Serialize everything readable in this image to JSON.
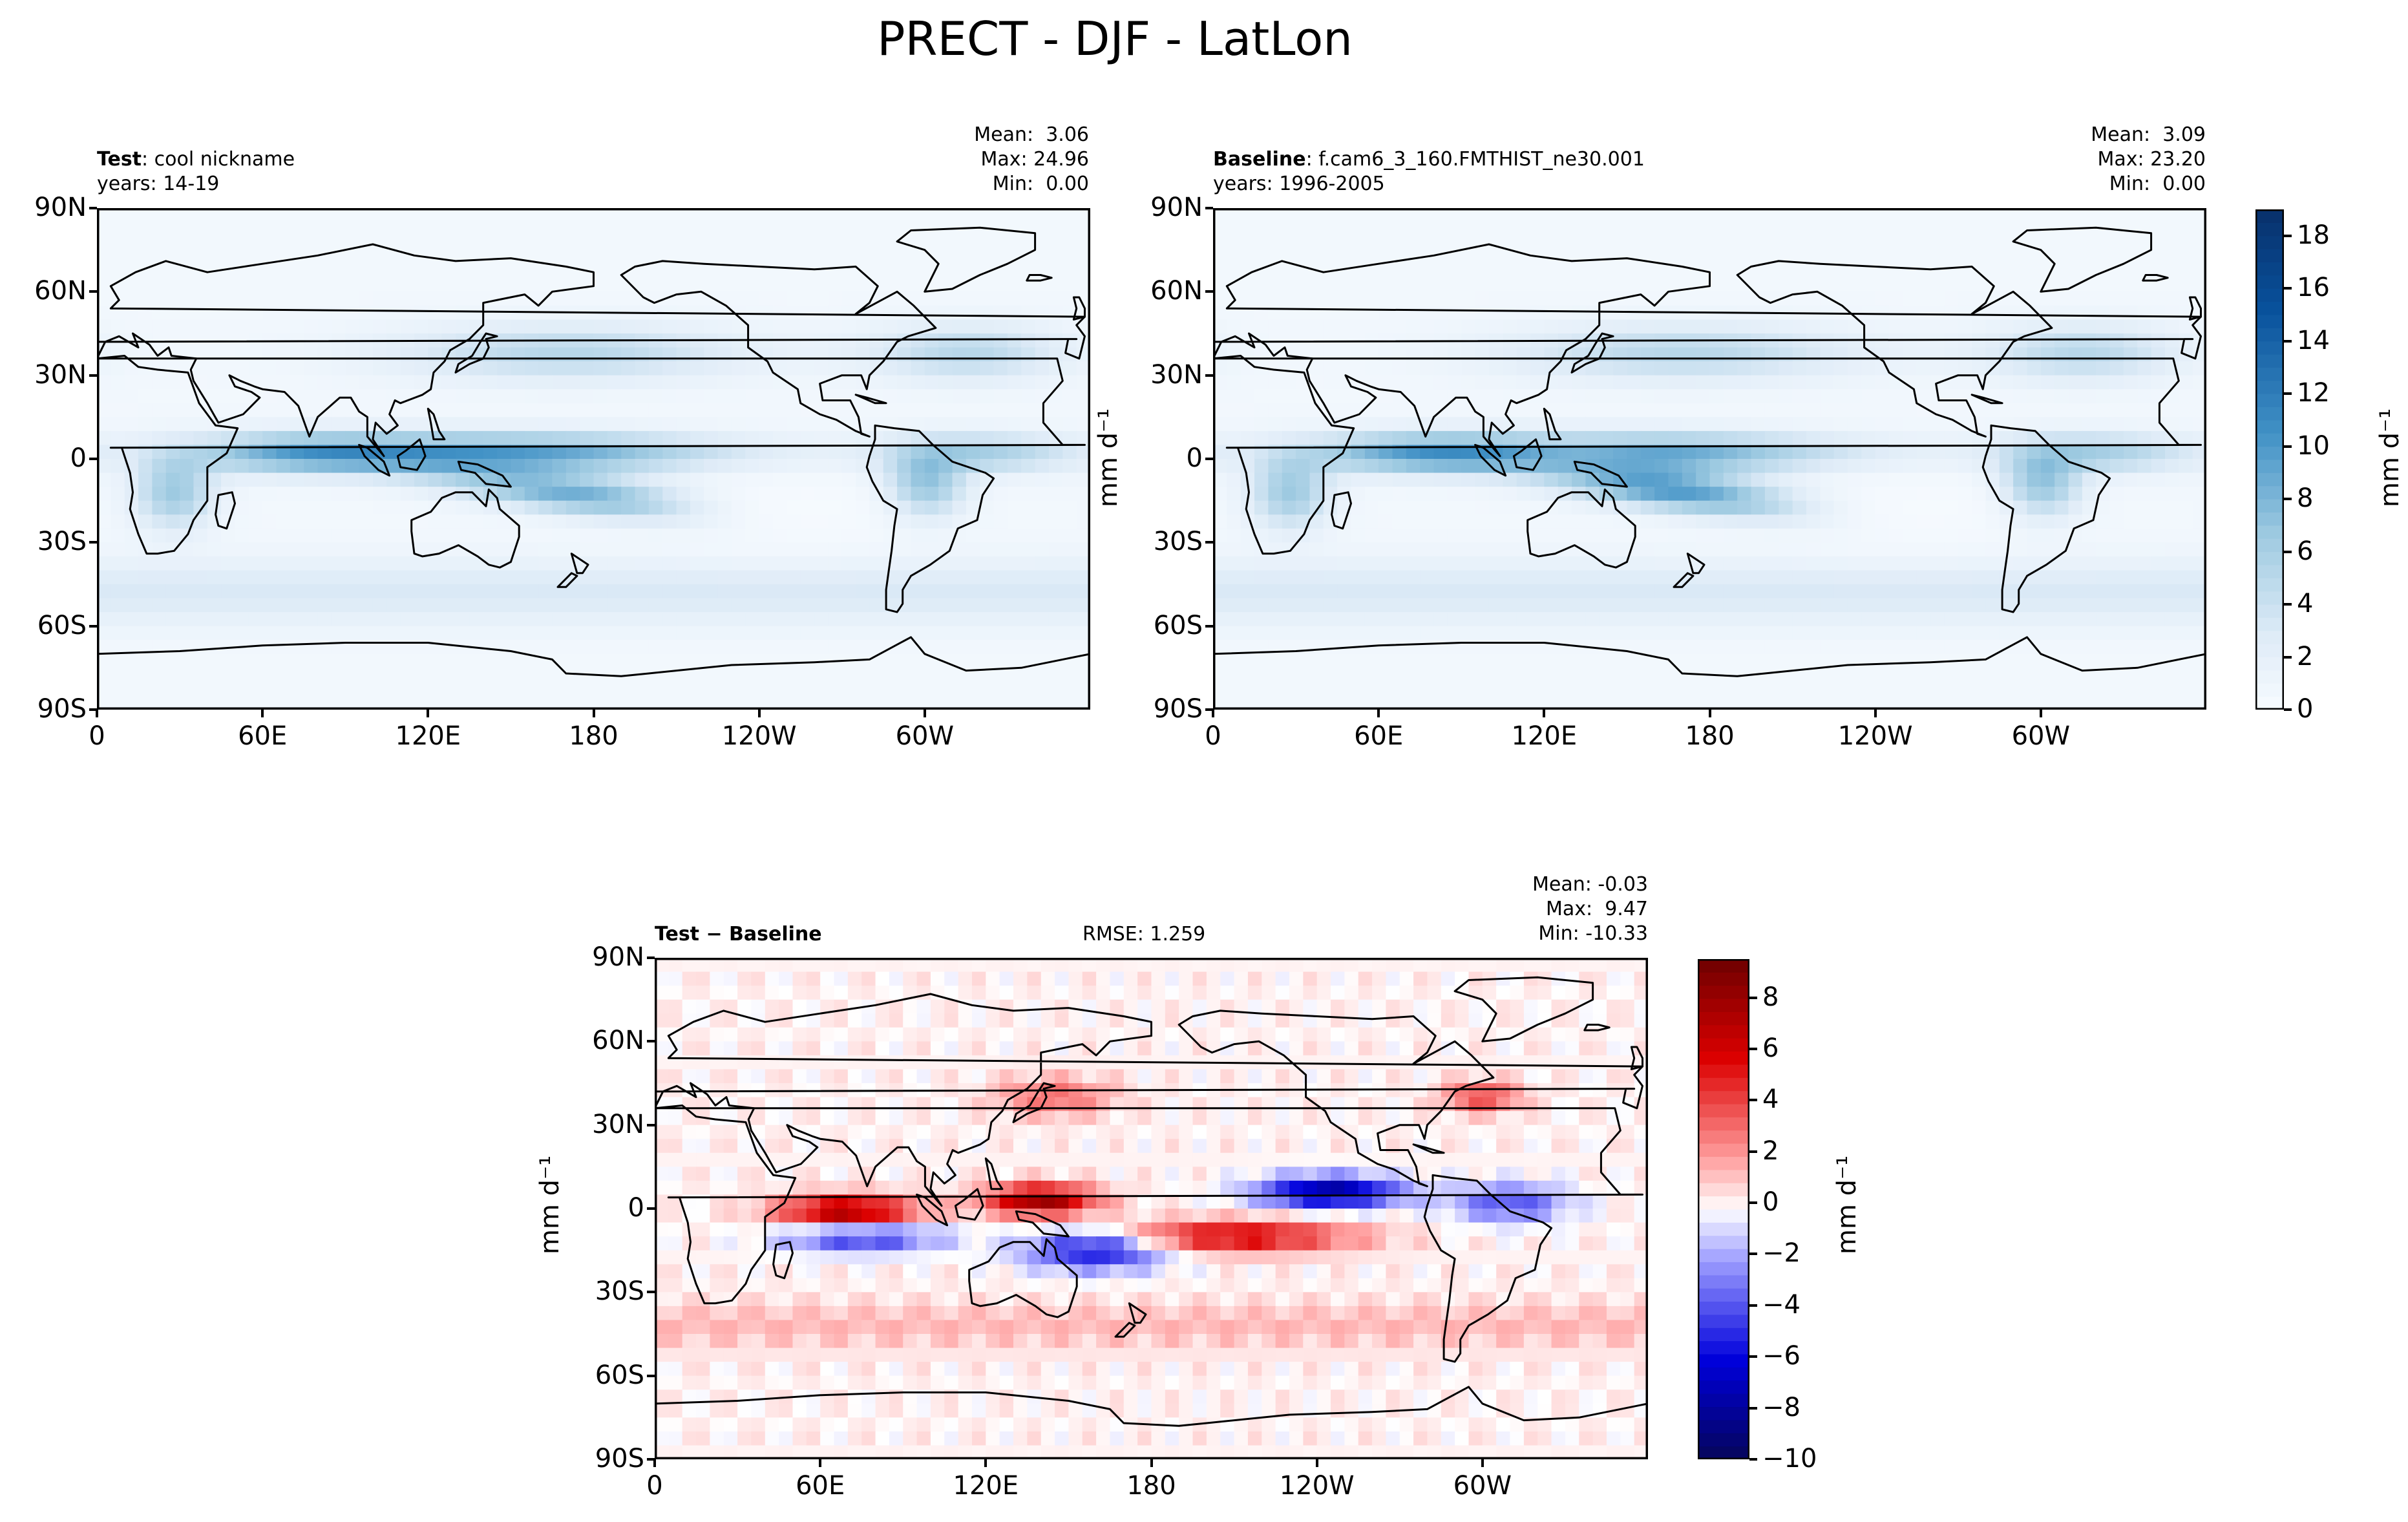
{
  "title": "PRECT - DJF - LatLon",
  "panels": [
    {
      "id": "test",
      "label_bold": "Test",
      "label_rest": ": cool nickname",
      "years": "years: 14-19",
      "stats": [
        "Mean:  3.06",
        "Max: 24.96",
        "Min:  0.00"
      ],
      "xticks": [
        "0",
        "60E",
        "120E",
        "180",
        "120W",
        "60W"
      ],
      "yticks": [
        "90N",
        "60N",
        "30N",
        "0",
        "30S",
        "60S",
        "90S"
      ],
      "ylabel": "",
      "palette": "blues"
    },
    {
      "id": "baseline",
      "label_bold": "Baseline",
      "label_rest": ": f.cam6_3_160.FMTHIST_ne30.001",
      "years": "years: 1996-2005",
      "stats": [
        "Mean:  3.09",
        "Max: 23.20",
        "Min:  0.00"
      ],
      "xticks": [
        "0",
        "60E",
        "120E",
        "180",
        "120W",
        "60W"
      ],
      "yticks": [
        "90N",
        "60N",
        "30N",
        "0",
        "30S",
        "60S",
        "90S"
      ],
      "ylabel": "mm d⁻¹",
      "palette": "blues"
    },
    {
      "id": "diff",
      "label_bold": "Test − Baseline",
      "label_rest": "",
      "rmse": "RMSE: 1.259",
      "stats": [
        "Mean: -0.03",
        "Max:  9.47",
        "Min: -10.33"
      ],
      "xticks": [
        "0",
        "60E",
        "120E",
        "180",
        "120W",
        "60W"
      ],
      "yticks": [
        "90N",
        "60N",
        "30N",
        "0",
        "30S",
        "60S",
        "90S"
      ],
      "ylabel": "mm d⁻¹",
      "palette": "diverging"
    }
  ],
  "colorbars": {
    "top": {
      "label": "mm d⁻¹",
      "ticks": [
        "0",
        "2",
        "4",
        "6",
        "8",
        "10",
        "12",
        "14",
        "16",
        "18"
      ],
      "range": [
        0,
        19
      ]
    },
    "bottom": {
      "label": "mm d⁻¹",
      "ticks": [
        "−10",
        "−8",
        "−6",
        "−4",
        "−2",
        "0",
        "2",
        "4",
        "6",
        "8"
      ],
      "range": [
        -10,
        9.5
      ]
    }
  },
  "chart_data": [
    {
      "type": "heatmap",
      "title": "Test : cool nickname",
      "variable": "PRECT",
      "season": "DJF",
      "units": "mm d⁻¹",
      "x_range_lon": [
        0,
        360
      ],
      "y_range_lat": [
        -90,
        90
      ],
      "mean": 3.06,
      "max": 24.96,
      "min": 0.0,
      "colorbar_range": [
        0,
        19
      ]
    },
    {
      "type": "heatmap",
      "title": "Baseline : f.cam6_3_160.FMTHIST_ne30.001",
      "variable": "PRECT",
      "season": "DJF",
      "units": "mm d⁻¹",
      "x_range_lon": [
        0,
        360
      ],
      "y_range_lat": [
        -90,
        90
      ],
      "mean": 3.09,
      "max": 23.2,
      "min": 0.0,
      "colorbar_range": [
        0,
        19
      ]
    },
    {
      "type": "heatmap",
      "title": "Test − Baseline",
      "variable": "PRECT",
      "season": "DJF",
      "units": "mm d⁻¹",
      "x_range_lon": [
        0,
        360
      ],
      "y_range_lat": [
        -90,
        90
      ],
      "rmse": 1.259,
      "mean": -0.03,
      "max": 9.47,
      "min": -10.33,
      "colorbar_range": [
        -10,
        9.5
      ]
    }
  ]
}
